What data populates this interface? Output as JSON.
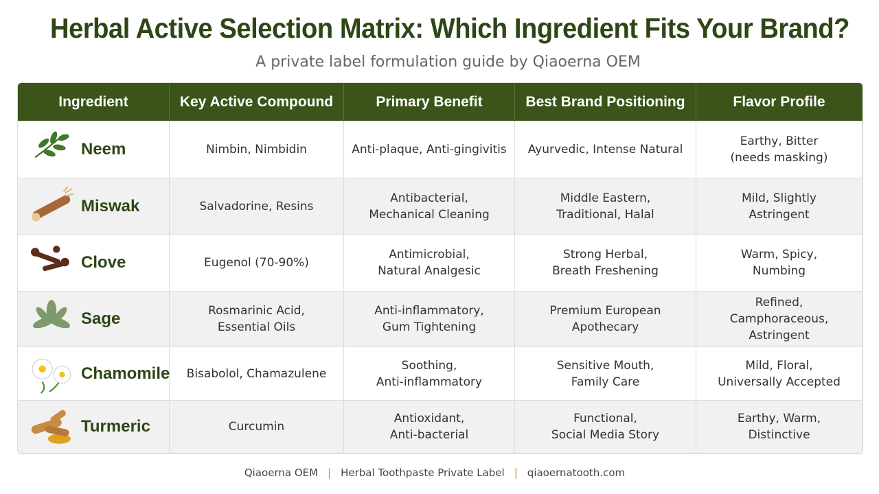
{
  "header": {
    "title": "Herbal Active Selection Matrix: Which Ingredient Fits Your Brand?",
    "subtitle": "A private label formulation guide by Qiaoerna OEM"
  },
  "table": {
    "columns": [
      "Ingredient",
      "Key Active Compound",
      "Primary Benefit",
      "Best Brand Positioning",
      "Flavor Profile"
    ],
    "rows": [
      [
        [
          "Neem"
        ],
        [
          "Nimbin, Nimbidin"
        ],
        [
          "Anti-plaque, Anti-gingivitis"
        ],
        [
          "Ayurvedic, Intense Natural"
        ],
        [
          "Earthy, Bitter",
          "(needs masking)"
        ]
      ],
      [
        [
          "Miswak"
        ],
        [
          "Salvadorine, Resins"
        ],
        [
          "Antibacterial,",
          "Mechanical Cleaning"
        ],
        [
          "Middle Eastern,",
          "Traditional, Halal"
        ],
        [
          "Mild, Slightly",
          "Astringent"
        ]
      ],
      [
        [
          "Clove"
        ],
        [
          "Eugenol  (70-90%)"
        ],
        [
          "Antimicrobial,",
          "Natural Analgesic"
        ],
        [
          "Strong Herbal,",
          "Breath Freshening"
        ],
        [
          "Warm, Spicy,",
          "Numbing"
        ]
      ],
      [
        [
          "Sage"
        ],
        [
          "Rosmarinic Acid,",
          "Essential Oils"
        ],
        [
          "Anti-inflammatory,",
          "Gum Tightening"
        ],
        [
          "Premium European",
          "Apothecary"
        ],
        [
          "Refined,",
          "Camphoraceous,",
          "Astringent"
        ]
      ],
      [
        [
          "Chamomile"
        ],
        [
          "Bisabolol, Chamazulene"
        ],
        [
          "Soothing,",
          "Anti-inflammatory"
        ],
        [
          "Sensitive Mouth,",
          "Family Care"
        ],
        [
          "Mild, Floral,",
          "Universally Accepted"
        ]
      ],
      [
        [
          "Turmeric"
        ],
        [
          "Curcumin"
        ],
        [
          "Antioxidant,",
          "Anti-bacterial"
        ],
        [
          "Functional,",
          "Social Media Story"
        ],
        [
          "Earthy, Warm,",
          "Distinctive"
        ]
      ]
    ]
  },
  "footer": [
    "Qiaoerna OEM",
    "Herbal Toothpaste Private Label",
    "qiaoernatooth.com"
  ]
}
